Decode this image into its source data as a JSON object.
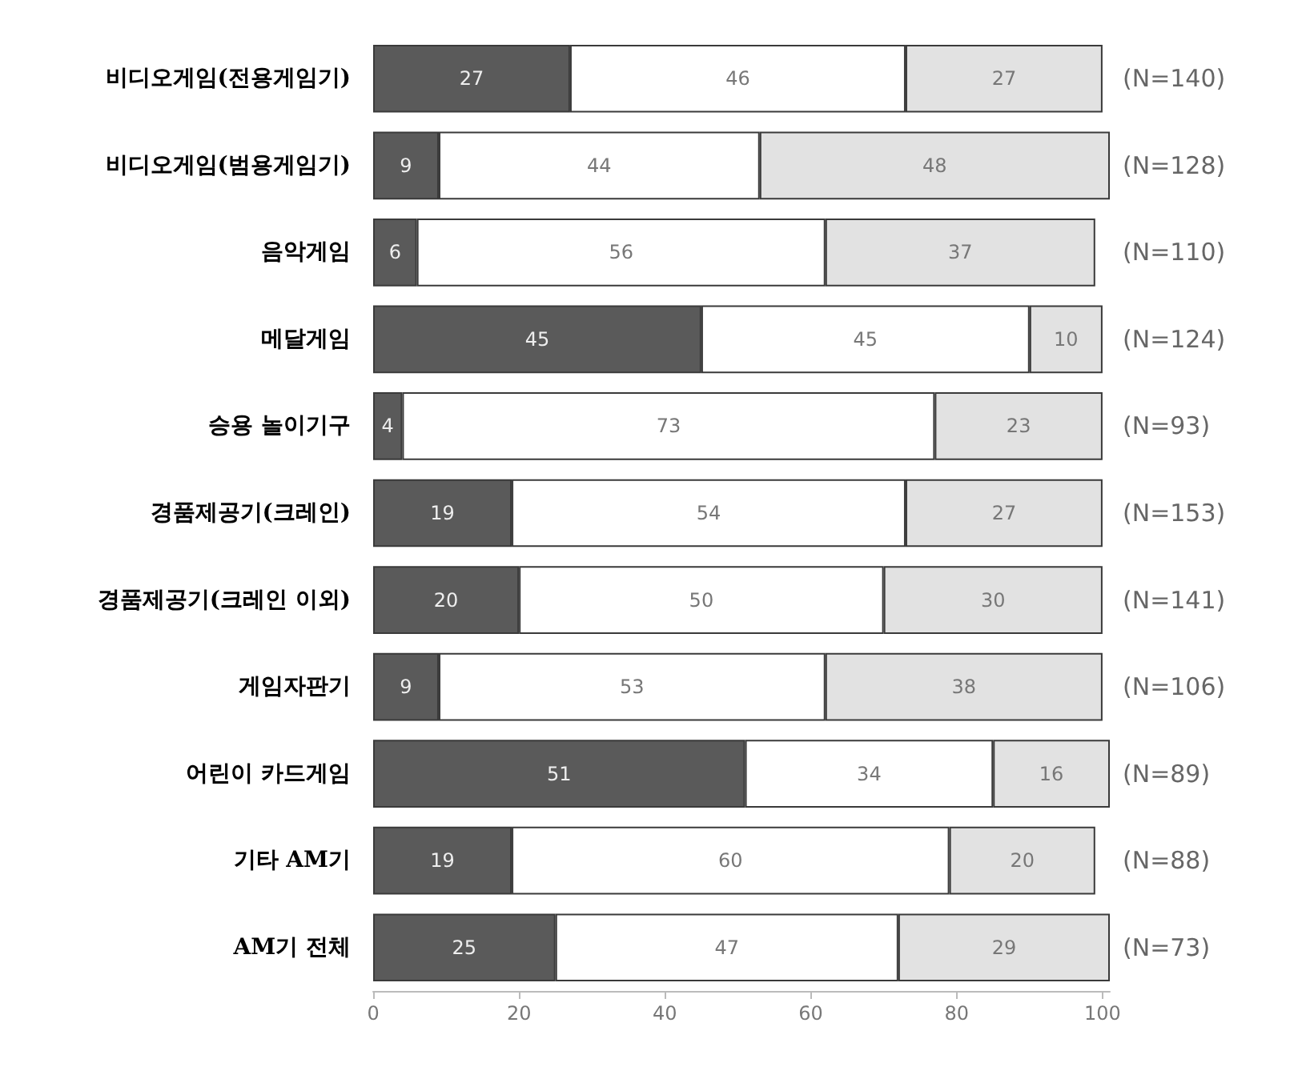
{
  "chart_data": {
    "type": "bar",
    "orientation": "horizontal",
    "stacked": true,
    "data_labels": true,
    "categories": [
      "비디오게임(전용게임기)",
      "비디오게임(범용게임기)",
      "음악게임",
      "메달게임",
      "승용 놀이기구",
      "경품제공기(크레인)",
      "경품제공기(크레인 이외)",
      "게임자판기",
      "어린이 카드게임",
      "기타 AM기",
      "AM기 전체"
    ],
    "series": [
      {
        "color": "#5a5a5a",
        "values": [
          27,
          9,
          6,
          45,
          4,
          19,
          20,
          9,
          51,
          19,
          25
        ]
      },
      {
        "color": "#ffffff",
        "values": [
          46,
          44,
          56,
          45,
          73,
          54,
          50,
          53,
          34,
          60,
          47
        ]
      },
      {
        "color": "#e2e2e2",
        "values": [
          27,
          48,
          37,
          10,
          23,
          27,
          30,
          38,
          16,
          20,
          29
        ]
      }
    ],
    "xlim": [
      0,
      101
    ],
    "xticks": [
      0,
      20,
      40,
      60,
      80,
      100
    ],
    "annotations": [
      "(N=140)",
      "(N=128)",
      "(N=110)",
      "(N=124)",
      "(N=93)",
      "(N=153)",
      "(N=141)",
      "(N=106)",
      "(N=89)",
      "(N=88)",
      "(N=73)"
    ]
  }
}
